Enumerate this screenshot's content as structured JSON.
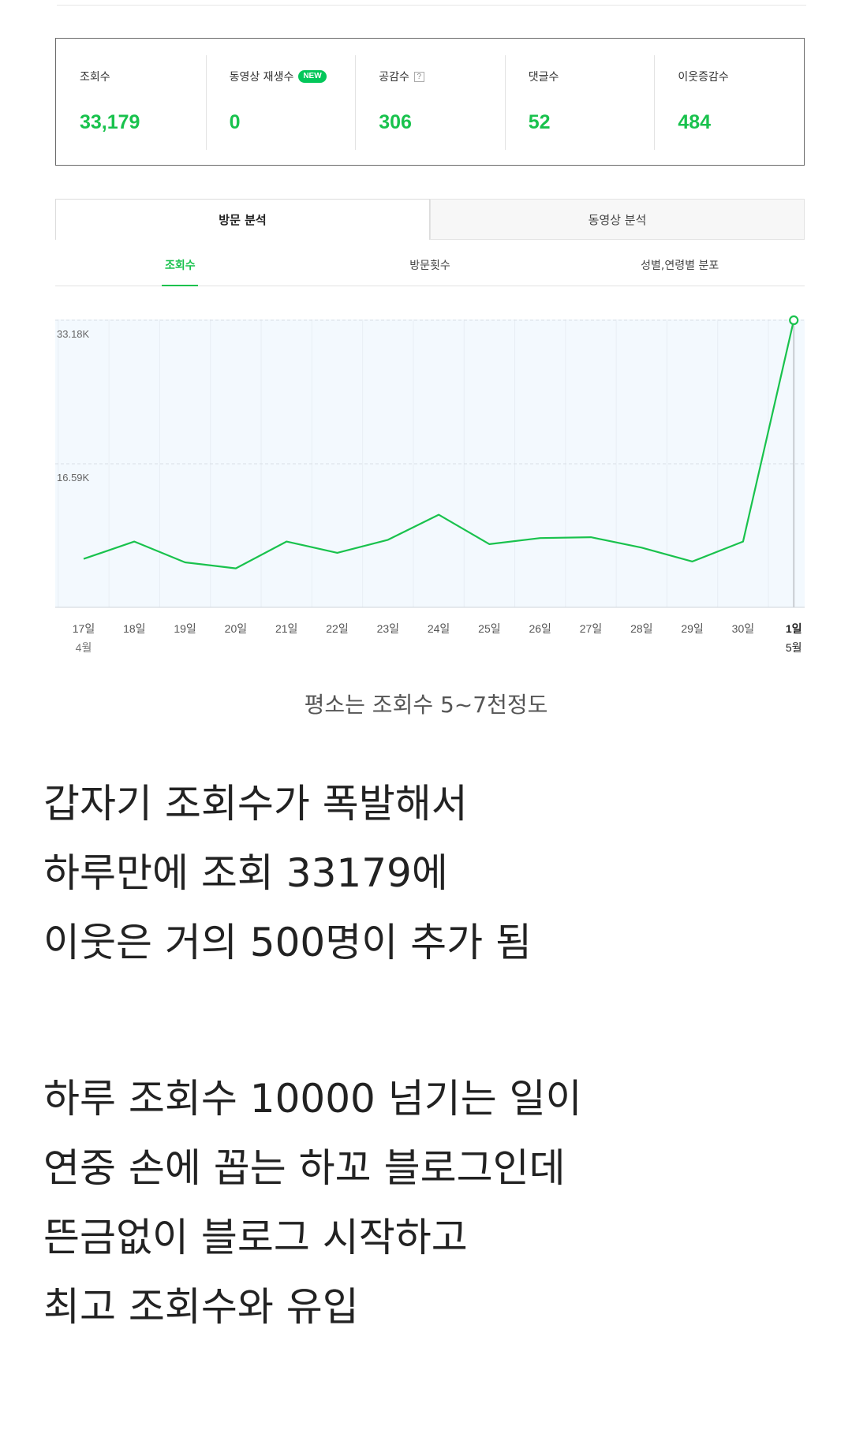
{
  "stats": [
    {
      "label": "조회수",
      "value": "33,179"
    },
    {
      "label": "동영상 재생수",
      "value": "0",
      "badge": "NEW"
    },
    {
      "label": "공감수",
      "value": "306",
      "help": "?"
    },
    {
      "label": "댓글수",
      "value": "52"
    },
    {
      "label": "이웃증감수",
      "value": "484"
    }
  ],
  "main_tabs": [
    {
      "label": "방문 분석",
      "active": true
    },
    {
      "label": "동영상 분석",
      "active": false
    }
  ],
  "sub_tabs": [
    {
      "label": "조회수",
      "active": true
    },
    {
      "label": "방문횟수",
      "active": false
    },
    {
      "label": "성별,연령별 분포",
      "active": false
    }
  ],
  "colors": {
    "accent": "#19c24d",
    "chart_fill": "#f3f9fe",
    "grid": "#dde3ea"
  },
  "chart_data": {
    "type": "line",
    "x": [
      "17일",
      "18일",
      "19일",
      "20일",
      "21일",
      "22일",
      "23일",
      "24일",
      "25일",
      "26일",
      "27일",
      "28일",
      "29일",
      "30일",
      "1일"
    ],
    "x_month_labels": {
      "0": "4월",
      "14": "5월"
    },
    "series": [
      {
        "values": [
          5600,
          7600,
          5200,
          4500,
          7600,
          6300,
          7800,
          10700,
          7300,
          8000,
          8100,
          6900,
          5300,
          7600,
          33179
        ]
      }
    ],
    "y_ticks": [
      {
        "value": 16590,
        "label": "16.59K"
      },
      {
        "value": 33180,
        "label": "33.18K"
      }
    ],
    "ylim": [
      0,
      33180
    ],
    "highlight_index": 14,
    "grid": true
  },
  "caption": "평소는 조회수 5~7천정도",
  "body_lines": [
    "갑자기 조회수가 폭발해서",
    "하루만에 조회 33179에",
    "이웃은 거의 500명이 추가 됨",
    "",
    "하루 조회수 10000 넘기는 일이",
    "연중 손에 꼽는 하꼬 블로그인데",
    "뜬금없이 블로그 시작하고",
    "최고 조회수와 유입"
  ]
}
